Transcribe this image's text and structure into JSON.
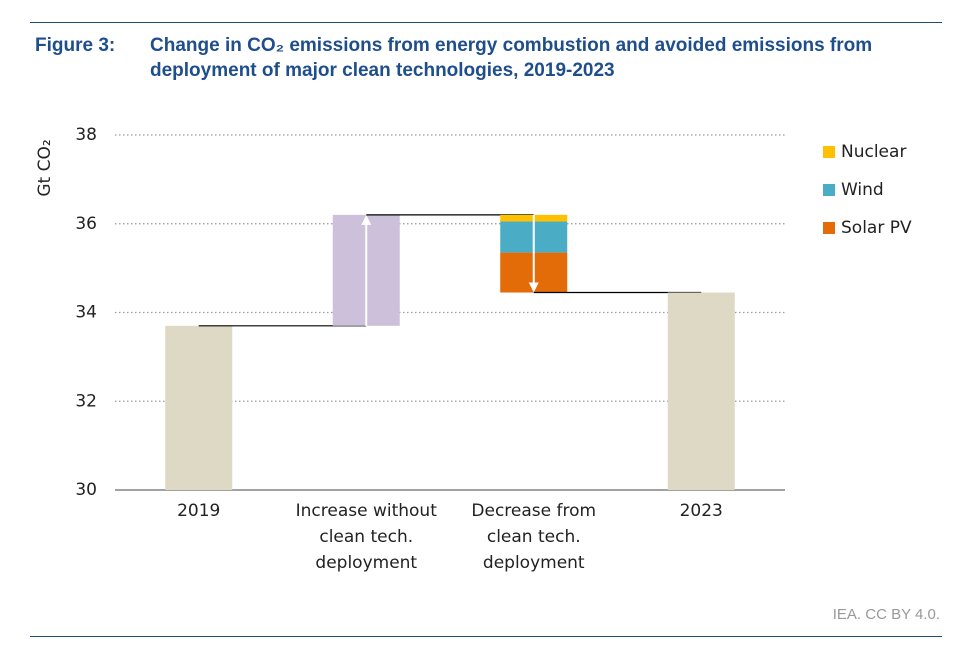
{
  "chart_data": {
    "type": "waterfall",
    "figure_label": "Figure 3:",
    "title": "Change in CO₂ emissions from energy combustion and avoided emissions from deployment of major clean technologies, 2019-2023",
    "y_label": "Gt CO₂",
    "source": "IEA. CC BY 4.0.",
    "categories": [
      "2019",
      "Increase without clean tech. deployment",
      "Decrease from clean tech. deployment",
      "2023"
    ],
    "values": [
      33.7,
      2.5,
      null,
      34.45
    ],
    "total_color": "#ddd9c4",
    "increase_color": "#ccc0da",
    "series": [
      {
        "name": "Nuclear",
        "color": "#ffc000",
        "values": [
          null,
          null,
          0.15,
          null
        ]
      },
      {
        "name": "Wind",
        "color": "#4bacc6",
        "values": [
          null,
          null,
          0.7,
          null
        ]
      },
      {
        "name": "Solar PV",
        "color": "#e36c09",
        "values": [
          null,
          null,
          0.9,
          null
        ]
      }
    ],
    "ylim": [
      30,
      38
    ],
    "yticks": [
      30,
      32,
      34,
      36,
      38
    ],
    "grid": true,
    "legend": "top-right"
  }
}
